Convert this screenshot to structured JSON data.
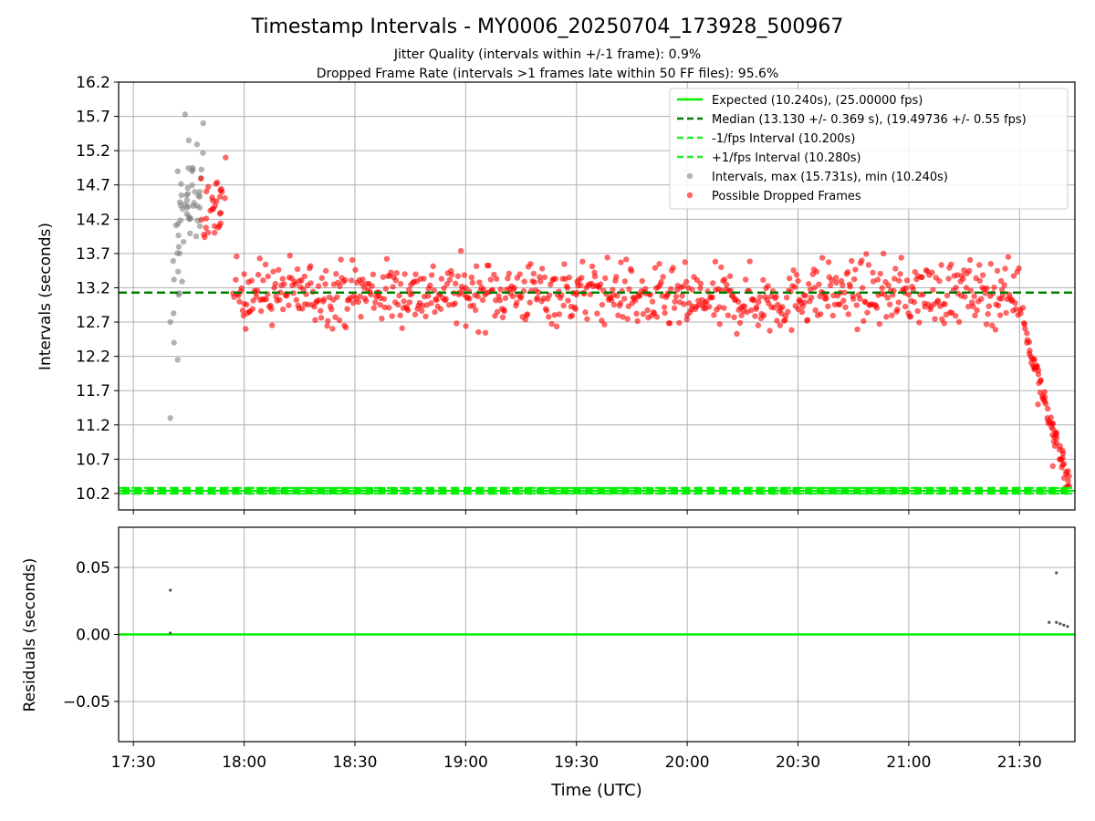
{
  "chart_data": {
    "type": "scatter",
    "title": "Timestamp Intervals - MY0006_20250704_173928_500967",
    "subtitle_1": "Jitter Quality (intervals within +/-1 frame): 0.9%",
    "subtitle_2": "Dropped Frame Rate (intervals >1 frames late within 50 FF files): 95.6%",
    "xlabel": "Time (UTC)",
    "x_ticks": [
      "17:30",
      "18:00",
      "18:30",
      "19:00",
      "19:30",
      "20:00",
      "20:30",
      "21:00",
      "21:30"
    ],
    "x_range": [
      "17:26",
      "21:45"
    ],
    "grid": true,
    "legend_position": "top-right",
    "top_panel": {
      "ylabel": "Intervals (seconds)",
      "y_ticks": [
        "16.2",
        "15.7",
        "15.2",
        "14.7",
        "14.2",
        "13.7",
        "13.2",
        "12.7",
        "12.2",
        "11.7",
        "11.2",
        "10.7",
        "10.2"
      ],
      "ylim": [
        9.96,
        16.2
      ],
      "expected_interval": 10.24,
      "median_interval": 13.13,
      "minus_fps_interval": 10.2,
      "plus_fps_interval": 10.28,
      "legend": [
        {
          "label": "Expected (10.240s), (25.00000 fps)",
          "style": "solid",
          "color": "#00ee00"
        },
        {
          "label": "Median (13.130 +/- 0.369 s), (19.49736 +/- 0.55 fps)",
          "style": "dashed",
          "color": "#008000"
        },
        {
          "label": "-1/fps Interval (10.200s)",
          "style": "dashed",
          "color": "#22ee22"
        },
        {
          "label": "+1/fps Interval (10.280s)",
          "style": "dashed",
          "color": "#22ee22"
        },
        {
          "label": "Intervals, max (15.731s), min (10.240s)",
          "style": "marker",
          "color": "#808080"
        },
        {
          "label": "Possible Dropped Frames",
          "style": "marker",
          "color": "#ff0000"
        }
      ],
      "intervals_sample": [
        {
          "t": "17:40",
          "v": 11.3
        },
        {
          "t": "17:40",
          "v": 12.7
        },
        {
          "t": "17:41",
          "v": 12.4
        },
        {
          "t": "17:42",
          "v": 12.15
        },
        {
          "t": "17:42",
          "v": 14.9
        },
        {
          "t": "17:43",
          "v": 14.55
        },
        {
          "t": "17:44",
          "v": 15.73
        },
        {
          "t": "17:45",
          "v": 15.35
        },
        {
          "t": "17:46",
          "v": 14.95
        },
        {
          "t": "17:47",
          "v": 13.95
        },
        {
          "t": "17:48",
          "v": 14.1
        }
      ],
      "dropped_sample": [
        {
          "t": "17:52",
          "v": 14.1
        },
        {
          "t": "17:54",
          "v": 14.6
        },
        {
          "t": "17:55",
          "v": 15.1
        },
        {
          "t": "18:00",
          "v": 13.4
        },
        {
          "t": "18:15",
          "v": 13.3
        },
        {
          "t": "18:45",
          "v": 13.1
        },
        {
          "t": "19:00",
          "v": 13.2
        },
        {
          "t": "19:30",
          "v": 13.1
        },
        {
          "t": "20:00",
          "v": 12.8
        },
        {
          "t": "20:30",
          "v": 13.3
        },
        {
          "t": "21:00",
          "v": 13.1
        },
        {
          "t": "21:25",
          "v": 13.3
        },
        {
          "t": "21:32",
          "v": 12.4
        },
        {
          "t": "21:35",
          "v": 11.5
        },
        {
          "t": "21:39",
          "v": 10.6
        },
        {
          "t": "21:43",
          "v": 10.3
        }
      ]
    },
    "bottom_panel": {
      "ylabel": "Residuals (seconds)",
      "y_ticks": [
        "0.05",
        "0.00",
        "−0.05"
      ],
      "ylim": [
        -0.08,
        0.08
      ],
      "residual_points": [
        {
          "t": "17:40",
          "v": 0.033
        },
        {
          "t": "17:40",
          "v": 0.001
        },
        {
          "t": "21:38",
          "v": 0.009
        },
        {
          "t": "21:40",
          "v": 0.046
        },
        {
          "t": "21:40",
          "v": 0.009
        },
        {
          "t": "21:41",
          "v": 0.008
        },
        {
          "t": "21:42",
          "v": 0.007
        },
        {
          "t": "21:43",
          "v": 0.006
        }
      ]
    }
  }
}
